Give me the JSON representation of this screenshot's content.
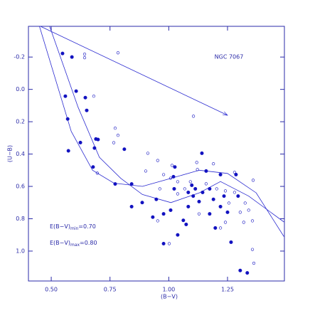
{
  "chart_data": {
    "type": "scatter",
    "x_label": "(B−V)",
    "y_label": "(U−B)",
    "cluster_label": "NGC 7067",
    "reddening_min": {
      "text": "E(B−V)",
      "subscript": "min",
      "value_text": "=0.70"
    },
    "reddening_max": {
      "text": "E(B−V)",
      "subscript": "max",
      "value_text": "=0.80"
    },
    "xlim": [
      0.403,
      1.492
    ],
    "ylim": [
      -0.39,
      1.185
    ],
    "y_inverted": true,
    "xticks": [
      {
        "value": 0.5,
        "label": "0.50"
      },
      0.75,
      {
        "value": 1,
        "label": "1.00"
      },
      1.25
    ],
    "yticks": [
      -0.2,
      {
        "value": 0,
        "label": "0.0"
      },
      0.2,
      0.4,
      0.6,
      0.8,
      {
        "value": 1,
        "label": "1.0"
      }
    ],
    "axis_color": "#2a2aa8",
    "series": [
      {
        "marker": "filled",
        "color": "#1212c0",
        "x": [
          0.548,
          0.588,
          0.56,
          0.606,
          0.57,
          0.645,
          0.651,
          0.624,
          0.69,
          0.573,
          0.684,
          0.678,
          0.699,
          0.811,
          0.772,
          0.842,
          0.842,
          0.887,
          0.947,
          0.978,
          1.023,
          1.02,
          1.026,
          1.038,
          1.062,
          1.074,
          1.083,
          1.098,
          1.113,
          1.129,
          1.141,
          1.159,
          1.174,
          1.19,
          1.198,
          1.22,
          1.235,
          1.25,
          1.265,
          1.286,
          1.295,
          1.304,
          1.334,
          0.978,
          0.932,
          1.008,
          1.104,
          1.144,
          1.174,
          1.22,
          1.083
        ],
        "values": [
          -0.222,
          -0.2,
          0.042,
          0.011,
          0.183,
          0.051,
          0.13,
          0.329,
          0.307,
          0.38,
          0.363,
          0.48,
          0.31,
          0.37,
          0.585,
          0.585,
          0.725,
          0.7,
          0.68,
          0.954,
          0.615,
          0.54,
          0.48,
          0.9,
          0.81,
          0.835,
          0.637,
          0.593,
          0.615,
          0.694,
          0.395,
          0.505,
          0.615,
          0.68,
          0.857,
          0.527,
          0.66,
          0.76,
          0.945,
          0.527,
          0.66,
          1.12,
          1.135,
          0.77,
          0.79,
          0.747,
          0.66,
          0.637,
          0.77,
          0.725,
          0.725
        ]
      },
      {
        "marker": "open",
        "color": "#1212c0",
        "x": [
          0.642,
          0.642,
          0.784,
          0.681,
          0.772,
          0.784,
          0.766,
          0.696,
          0.911,
          0.953,
          0.902,
          0.978,
          1.008,
          1.038,
          0.962,
          1.014,
          1.105,
          1.119,
          1.122,
          1.19,
          1.28,
          1.359,
          1.068,
          1.159,
          1.204,
          1.241,
          1.256,
          1.28,
          1.325,
          1.34,
          1.319,
          1.356,
          1.241,
          1.129,
          1.038,
          0.953,
          1.002,
          1.356,
          1.362,
          1.22,
          1.304,
          1.092
        ],
        "values": [
          -0.218,
          -0.196,
          -0.226,
          0.042,
          0.24,
          0.284,
          0.33,
          0.518,
          0.395,
          0.44,
          0.505,
          0.527,
          0.549,
          0.571,
          0.615,
          0.47,
          0.166,
          0.452,
          0.496,
          0.46,
          0.513,
          0.562,
          0.615,
          0.584,
          0.615,
          0.628,
          0.703,
          0.637,
          0.703,
          0.747,
          0.822,
          0.813,
          0.822,
          0.77,
          0.646,
          0.813,
          0.954,
          0.99,
          1.075,
          0.857,
          0.76,
          0.571
        ]
      }
    ],
    "curves": [
      {
        "color": "#2a2ad0",
        "x": [
          0.45,
          0.585,
          0.676,
          0.767,
          0.888,
          1.009,
          1.13,
          1.25,
          1.372,
          1.49
        ],
        "y": [
          -0.39,
          0.26,
          0.5,
          0.58,
          0.6,
          0.55,
          0.5,
          0.52,
          0.64,
          0.91
        ]
      },
      {
        "color": "#2a2ad0",
        "x": [
          0.493,
          0.614,
          0.705,
          0.796,
          0.888,
          1.009,
          1.13,
          1.22,
          1.34,
          1.49
        ],
        "y": [
          -0.39,
          0.11,
          0.42,
          0.55,
          0.65,
          0.7,
          0.64,
          0.57,
          0.66,
          0.82
        ]
      }
    ],
    "arrow": {
      "color": "#2a2ad0",
      "x": [
        0.454,
        1.25
      ],
      "y": [
        -0.39,
        0.16
      ]
    }
  }
}
